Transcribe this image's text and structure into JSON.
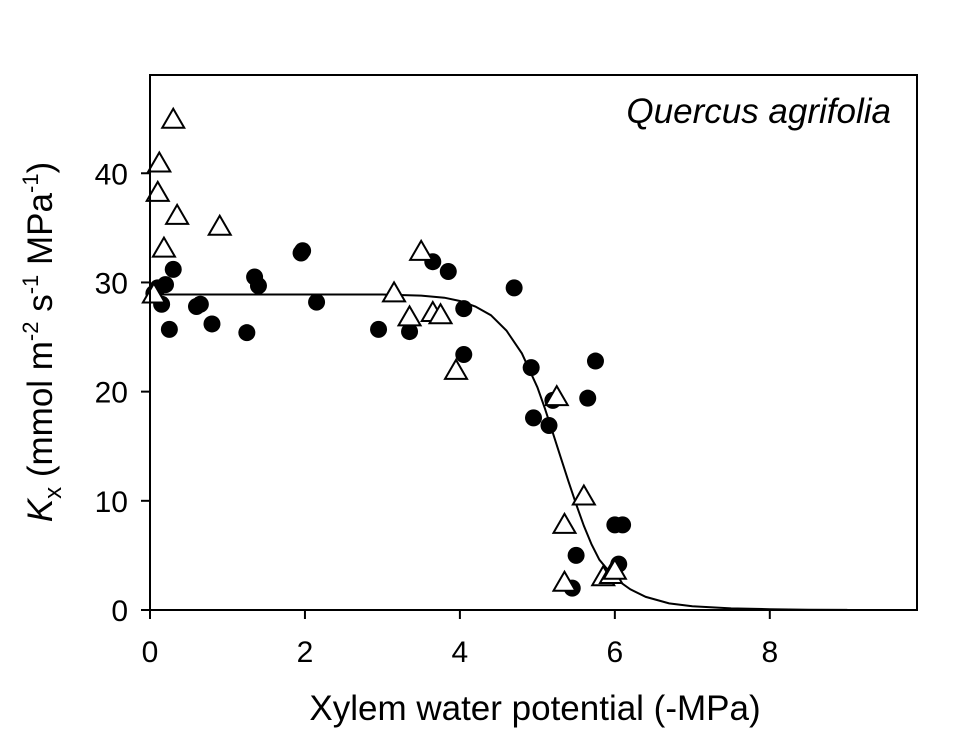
{
  "chart_data": {
    "type": "scatter",
    "annotation": "Quercus agrifolia",
    "xlabel": "Xylem water potential (-MPa)",
    "ylabel": {
      "symbol": "K",
      "subscript": "x",
      "units_open": " (mmol m",
      "exp1": "-2",
      "mid1": " s",
      "exp2": "-1",
      "mid2": " MPa",
      "exp3": "-1",
      "units_close": ")"
    },
    "xlim": [
      0,
      9.9
    ],
    "ylim": [
      0,
      49
    ],
    "x_ticks": [
      0,
      2,
      4,
      6,
      8
    ],
    "y_ticks": [
      0,
      10,
      20,
      30,
      40
    ],
    "grid": false,
    "legend": "none",
    "series": [
      {
        "marker": "filled-circle",
        "color": "#000000",
        "points": [
          [
            0.05,
            29.0
          ],
          [
            0.1,
            29.5
          ],
          [
            0.15,
            28.0
          ],
          [
            0.2,
            29.8
          ],
          [
            0.25,
            25.7
          ],
          [
            0.3,
            31.2
          ],
          [
            0.6,
            27.8
          ],
          [
            0.65,
            28.0
          ],
          [
            0.8,
            26.2
          ],
          [
            1.25,
            25.4
          ],
          [
            1.35,
            30.5
          ],
          [
            1.4,
            29.7
          ],
          [
            1.95,
            32.7
          ],
          [
            1.97,
            32.9
          ],
          [
            2.15,
            28.2
          ],
          [
            2.95,
            25.7
          ],
          [
            3.35,
            25.5
          ],
          [
            3.65,
            31.9
          ],
          [
            3.85,
            31.0
          ],
          [
            4.05,
            23.4
          ],
          [
            4.05,
            27.6
          ],
          [
            4.7,
            29.5
          ],
          [
            4.92,
            22.2
          ],
          [
            4.95,
            17.6
          ],
          [
            5.15,
            16.9
          ],
          [
            5.2,
            19.2
          ],
          [
            5.45,
            2.0
          ],
          [
            5.5,
            5.0
          ],
          [
            5.65,
            19.4
          ],
          [
            5.75,
            22.8
          ],
          [
            6.0,
            7.8
          ],
          [
            6.05,
            4.2
          ],
          [
            6.1,
            7.8
          ]
        ]
      },
      {
        "marker": "open-triangle",
        "color": "#000000",
        "points": [
          [
            0.05,
            28.9
          ],
          [
            0.1,
            38.2
          ],
          [
            0.12,
            40.9
          ],
          [
            0.18,
            33.1
          ],
          [
            0.3,
            44.9
          ],
          [
            0.35,
            36.1
          ],
          [
            0.9,
            35.1
          ],
          [
            3.15,
            29.0
          ],
          [
            3.35,
            26.8
          ],
          [
            3.5,
            32.8
          ],
          [
            3.65,
            27.2
          ],
          [
            3.75,
            27.0
          ],
          [
            3.95,
            21.9
          ],
          [
            5.25,
            19.5
          ],
          [
            5.35,
            7.8
          ],
          [
            5.35,
            2.5
          ],
          [
            5.6,
            10.4
          ],
          [
            5.85,
            3.0
          ],
          [
            5.95,
            3.2
          ],
          [
            6.0,
            3.6
          ]
        ]
      }
    ],
    "fit_curve": {
      "color": "#000000",
      "points": [
        [
          0,
          28.9
        ],
        [
          1,
          28.9
        ],
        [
          2,
          28.9
        ],
        [
          3,
          28.9
        ],
        [
          3.5,
          28.8
        ],
        [
          3.8,
          28.6
        ],
        [
          4.0,
          28.3
        ],
        [
          4.2,
          27.8
        ],
        [
          4.4,
          27.0
        ],
        [
          4.6,
          25.6
        ],
        [
          4.8,
          23.5
        ],
        [
          5.0,
          20.4
        ],
        [
          5.1,
          18.4
        ],
        [
          5.2,
          16.2
        ],
        [
          5.3,
          14.0
        ],
        [
          5.4,
          11.8
        ],
        [
          5.5,
          9.7
        ],
        [
          5.6,
          7.7
        ],
        [
          5.7,
          6.0
        ],
        [
          5.8,
          4.6
        ],
        [
          6.0,
          2.9
        ],
        [
          6.2,
          1.9
        ],
        [
          6.4,
          1.2
        ],
        [
          6.7,
          0.6
        ],
        [
          7.0,
          0.35
        ],
        [
          7.5,
          0.15
        ],
        [
          8.0,
          0.07
        ],
        [
          8.5,
          0.03
        ],
        [
          9.0,
          0.01
        ]
      ]
    }
  }
}
